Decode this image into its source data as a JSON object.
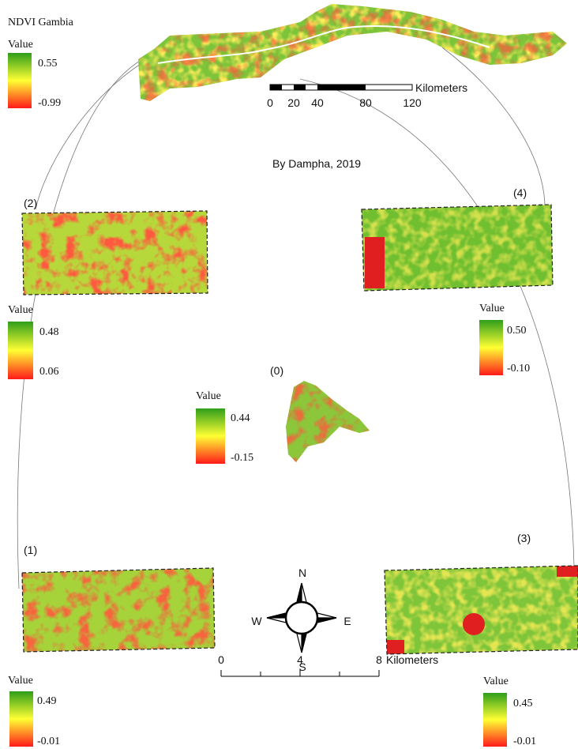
{
  "title": "NDVI Gambia",
  "credit": "By Dampha, 2019",
  "main_legend": {
    "title": "Value",
    "max": "0.55",
    "min": "-0.99"
  },
  "main_scale_bar": {
    "ticks": [
      "0",
      "20",
      "40",
      "80",
      "120"
    ],
    "unit": "Kilometers"
  },
  "panels": [
    {
      "label": "(0)",
      "legend": {
        "title": "Value",
        "max": "0.44",
        "min": "-0.15"
      }
    },
    {
      "label": "(1)",
      "legend": {
        "title": "Value",
        "max": "0.49",
        "min": "-0.01"
      }
    },
    {
      "label": "(2)",
      "legend": {
        "title": "Value",
        "max": "0.48",
        "min": "0.06"
      }
    },
    {
      "label": "(3)",
      "legend": {
        "title": "Value",
        "max": "0.45",
        "min": "-0.01"
      }
    },
    {
      "label": "(4)",
      "legend": {
        "title": "Value",
        "max": "0.50",
        "min": "-0.10"
      }
    }
  ],
  "inset_scale_bar": {
    "ticks": [
      "0",
      "4",
      "8"
    ],
    "unit": "Kilometers"
  },
  "compass": {
    "north": "N",
    "south": "S",
    "east": "E",
    "west": "W"
  }
}
